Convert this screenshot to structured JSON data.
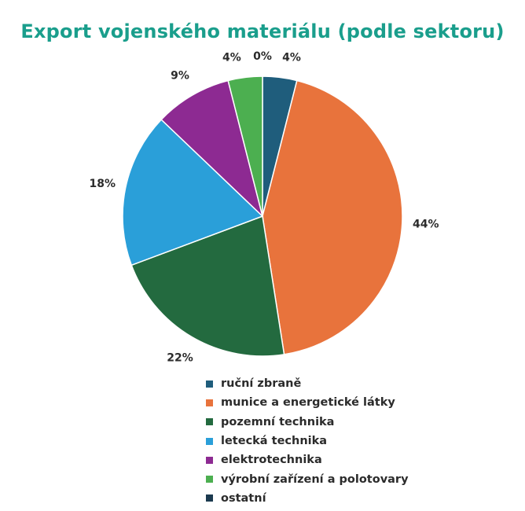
{
  "chart_data": {
    "type": "pie",
    "title": "Export vojenského materiálu (podle sektoru)",
    "legend_position": "bottom",
    "slices": [
      {
        "label": "ruční zbraně",
        "value": 4,
        "value_label": "4%",
        "color": "#1f5d7c"
      },
      {
        "label": "munice a energetické  látky",
        "value": 44,
        "value_label": "44%",
        "color": "#e8733c"
      },
      {
        "label": "pozemní technika",
        "value": 22,
        "value_label": "22%",
        "color": "#236a3f"
      },
      {
        "label": "letecká technika",
        "value": 18,
        "value_label": "18%",
        "color": "#2a9fd9"
      },
      {
        "label": "elektrotechnika",
        "value": 9,
        "value_label": "9%",
        "color": "#8d2a92"
      },
      {
        "label": "výrobní zařízení a  polotovary",
        "value": 4,
        "value_label": "4%",
        "color": "#4caf50"
      },
      {
        "label": "ostatní",
        "value": 0,
        "value_label": "0%",
        "color": "#1b3a4f"
      }
    ]
  }
}
